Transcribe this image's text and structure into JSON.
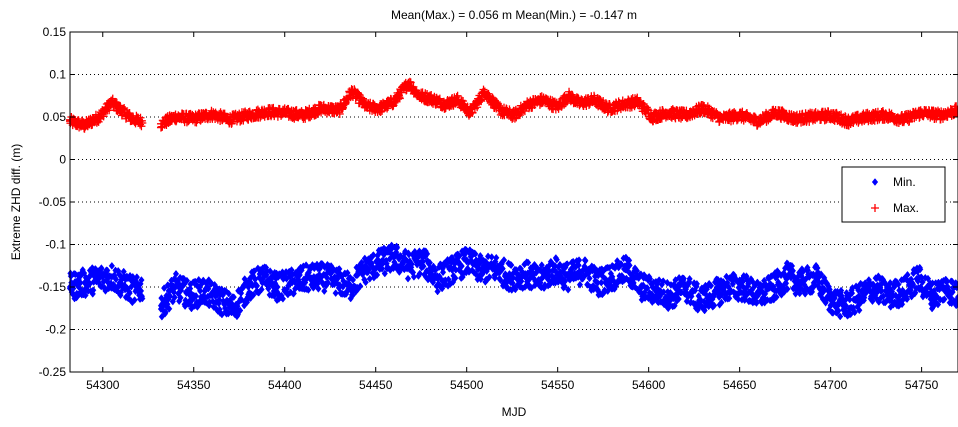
{
  "chart_data": {
    "type": "scatter",
    "title": "Mean(Max.) = 0.056 m   Mean(Min.) = -0.147 m",
    "xlabel": "MJD",
    "ylabel": "Extreme ZHD diff. (m)",
    "xlim": [
      54282,
      54770
    ],
    "ylim": [
      -0.25,
      0.15
    ],
    "x_ticks": [
      54300,
      54350,
      54400,
      54450,
      54500,
      54550,
      54600,
      54650,
      54700,
      54750
    ],
    "y_ticks": [
      -0.25,
      -0.2,
      -0.15,
      -0.1,
      -0.05,
      0,
      0.05,
      0.1,
      0.15
    ],
    "y_tick_labels": [
      "-0.25",
      "-0.2",
      "-0.15",
      "-0.1",
      "-0.05",
      "0",
      "0.05",
      "0.1",
      "0.15"
    ],
    "grid": "y-dotted",
    "legend": "right",
    "gap": [
      54322,
      54332
    ],
    "series": [
      {
        "name": "Max.",
        "marker": "plus",
        "color": "#ff0000",
        "x": [
          54282,
          54290,
          54298,
          54305,
          54310,
          54316,
          54322,
          54332,
          54340,
          54350,
          54360,
          54370,
          54380,
          54390,
          54400,
          54410,
          54420,
          54430,
          54437,
          54445,
          54452,
          54460,
          54468,
          54474,
          54480,
          54488,
          54495,
          54502,
          54510,
          54518,
          54526,
          54534,
          54542,
          54550,
          54556,
          54562,
          54570,
          54578,
          54586,
          54594,
          54602,
          54610,
          54620,
          54630,
          54640,
          54650,
          54660,
          54670,
          54680,
          54690,
          54700,
          54710,
          54720,
          54730,
          54740,
          54750,
          54760,
          54770
        ],
        "y": [
          0.045,
          0.04,
          0.05,
          0.067,
          0.058,
          0.048,
          0.044,
          0.042,
          0.05,
          0.048,
          0.053,
          0.047,
          0.052,
          0.056,
          0.055,
          0.052,
          0.06,
          0.058,
          0.08,
          0.062,
          0.06,
          0.068,
          0.09,
          0.075,
          0.072,
          0.065,
          0.07,
          0.055,
          0.08,
          0.058,
          0.052,
          0.065,
          0.07,
          0.062,
          0.075,
          0.066,
          0.07,
          0.06,
          0.065,
          0.068,
          0.05,
          0.055,
          0.052,
          0.06,
          0.048,
          0.052,
          0.045,
          0.055,
          0.048,
          0.05,
          0.052,
          0.045,
          0.05,
          0.052,
          0.047,
          0.055,
          0.052,
          0.058
        ]
      },
      {
        "name": "Min.",
        "marker": "diamond",
        "color": "#0000ff",
        "x": [
          54282,
          54290,
          54298,
          54305,
          54312,
          54318,
          54322,
          54332,
          54340,
          54348,
          54356,
          54364,
          54372,
          54380,
          54388,
          54396,
          54404,
          54412,
          54420,
          54428,
          54436,
          54444,
          54452,
          54460,
          54468,
          54476,
          54484,
          54492,
          54500,
          54508,
          54516,
          54524,
          54532,
          54540,
          54548,
          54556,
          54564,
          54572,
          54580,
          54588,
          54596,
          54604,
          54612,
          54620,
          54628,
          54636,
          54644,
          54652,
          54660,
          54668,
          54676,
          54684,
          54692,
          54700,
          54708,
          54716,
          54724,
          54732,
          54740,
          54748,
          54756,
          54764,
          54770
        ],
        "y": [
          -0.15,
          -0.145,
          -0.14,
          -0.138,
          -0.148,
          -0.155,
          -0.15,
          -0.172,
          -0.15,
          -0.16,
          -0.155,
          -0.165,
          -0.175,
          -0.15,
          -0.14,
          -0.15,
          -0.145,
          -0.14,
          -0.138,
          -0.142,
          -0.15,
          -0.13,
          -0.122,
          -0.115,
          -0.125,
          -0.12,
          -0.14,
          -0.13,
          -0.12,
          -0.13,
          -0.128,
          -0.138,
          -0.135,
          -0.142,
          -0.13,
          -0.138,
          -0.13,
          -0.145,
          -0.138,
          -0.13,
          -0.15,
          -0.155,
          -0.16,
          -0.15,
          -0.165,
          -0.158,
          -0.15,
          -0.15,
          -0.16,
          -0.152,
          -0.138,
          -0.145,
          -0.14,
          -0.165,
          -0.172,
          -0.162,
          -0.15,
          -0.16,
          -0.155,
          -0.14,
          -0.16,
          -0.15,
          -0.162
        ]
      }
    ]
  }
}
